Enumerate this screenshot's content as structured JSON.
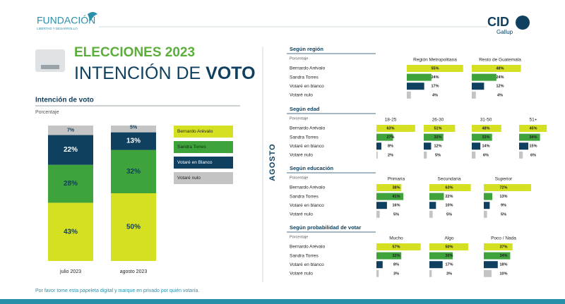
{
  "header": {
    "logo": "FUNDACIÓN",
    "logo_tagline": "LIBERTAD Y DESARROLLO",
    "brand": "CID",
    "brand_sub": "Gallup",
    "kicker": "ELECCIONES 2023",
    "title_light": "INTENCIÓN DE",
    "title_bold": "VOTO"
  },
  "chart_data": [
    {
      "type": "bar",
      "stacked": true,
      "title": "Intención de voto",
      "subtitle": "Porcentaje",
      "categories": [
        "julio 2023",
        "agosto 2023"
      ],
      "series": [
        {
          "name": "Bernardo Arévalo",
          "color": "#d4e021",
          "values": [
            43,
            50
          ],
          "value_labels": [
            "43%",
            "50%"
          ]
        },
        {
          "name": "Sandra Torres",
          "color": "#3fa33c",
          "values": [
            28,
            32
          ],
          "value_labels": [
            "28%",
            "32%"
          ]
        },
        {
          "name": "Votaré en Blanco",
          "color": "#10405f",
          "values": [
            22,
            13
          ],
          "value_labels": [
            "22%",
            "13%"
          ]
        },
        {
          "name": "Votaré nulo",
          "color": "#c4c4c4",
          "values": [
            7,
            5
          ],
          "value_labels": [
            "7%",
            "5%"
          ]
        }
      ]
    },
    {
      "type": "bar",
      "orientation": "horizontal",
      "title": "Según región",
      "subtitle": "Porcentaje",
      "categories": [
        "Bernardo Arévalo",
        "Sandra Torres",
        "Votaré en blanco",
        "Votaré nulo"
      ],
      "colors": [
        "#d4e021",
        "#3fa33c",
        "#10405f",
        "#c4c4c4"
      ],
      "series": [
        {
          "name": "Región Metropolitana",
          "values": [
            55,
            24,
            17,
            4
          ],
          "value_labels": [
            "55%",
            "24%",
            "17%",
            "4%"
          ]
        },
        {
          "name": "Resto de Guatemala",
          "values": [
            48,
            24,
            12,
            4
          ],
          "value_labels": [
            "48%",
            "24%",
            "12%",
            "4%"
          ]
        }
      ]
    },
    {
      "type": "bar",
      "orientation": "horizontal",
      "title": "Según edad",
      "subtitle": "Porcentaje",
      "categories": [
        "Bernardo Arévalo",
        "Sandra Torres",
        "Votaré en blanco",
        "Votaré nulo"
      ],
      "colors": [
        "#d4e021",
        "#3fa33c",
        "#10405f",
        "#c4c4c4"
      ],
      "series": [
        {
          "name": "18-25",
          "values": [
            63,
            27,
            8,
            2
          ],
          "value_labels": [
            "63%",
            "27%",
            "8%",
            "2%"
          ]
        },
        {
          "name": "26-30",
          "values": [
            51,
            32,
            12,
            5
          ],
          "value_labels": [
            "51%",
            "32%",
            "12%",
            "5%"
          ]
        },
        {
          "name": "31-50",
          "values": [
            48,
            33,
            14,
            6
          ],
          "value_labels": [
            "48%",
            "33%",
            "14%",
            "6%"
          ]
        },
        {
          "name": "51+",
          "values": [
            45,
            34,
            15,
            6
          ],
          "value_labels": [
            "45%",
            "34%",
            "15%",
            "6%"
          ]
        }
      ]
    },
    {
      "type": "bar",
      "orientation": "horizontal",
      "title": "Según educación",
      "subtitle": "Porcentaje",
      "categories": [
        "Bernardo Arévalo",
        "Sandra Torres",
        "Votaré en blanco",
        "Votaré nulo"
      ],
      "colors": [
        "#d4e021",
        "#3fa33c",
        "#10405f",
        "#c4c4c4"
      ],
      "series": [
        {
          "name": "Primaria",
          "values": [
            38,
            41,
            16,
            5
          ],
          "value_labels": [
            "38%",
            "41%",
            "16%",
            "5%"
          ]
        },
        {
          "name": "Secundaria",
          "values": [
            63,
            22,
            10,
            5
          ],
          "value_labels": [
            "63%",
            "22%",
            "10%",
            "5%"
          ]
        },
        {
          "name": "Superior",
          "values": [
            72,
            13,
            9,
            5
          ],
          "value_labels": [
            "72%",
            "13%",
            "9%",
            "5%"
          ]
        }
      ]
    },
    {
      "type": "bar",
      "orientation": "horizontal",
      "title": "Según probabilidad de votar",
      "subtitle": "Porcentaje",
      "categories": [
        "Bernardo Arévalo",
        "Sandra Torres",
        "Votaré en blanco",
        "Votaré nulo"
      ],
      "colors": [
        "#d4e021",
        "#3fa33c",
        "#10405f",
        "#c4c4c4"
      ],
      "series": [
        {
          "name": "Mucho",
          "values": [
            57,
            32,
            8,
            3
          ],
          "value_labels": [
            "57%",
            "32%",
            "8%",
            "3%"
          ]
        },
        {
          "name": "Algo",
          "values": [
            50,
            30,
            17,
            3
          ],
          "value_labels": [
            "50%",
            "30%",
            "17%",
            "3%"
          ]
        },
        {
          "name": "Poco / Nada",
          "values": [
            37,
            34,
            18,
            10
          ],
          "value_labels": [
            "37%",
            "34%",
            "18%",
            "10%"
          ]
        }
      ]
    }
  ],
  "side_label": "AGOSTO",
  "footer": "Por favor tome esta papeleta digital y marque en privado por quién votaría."
}
